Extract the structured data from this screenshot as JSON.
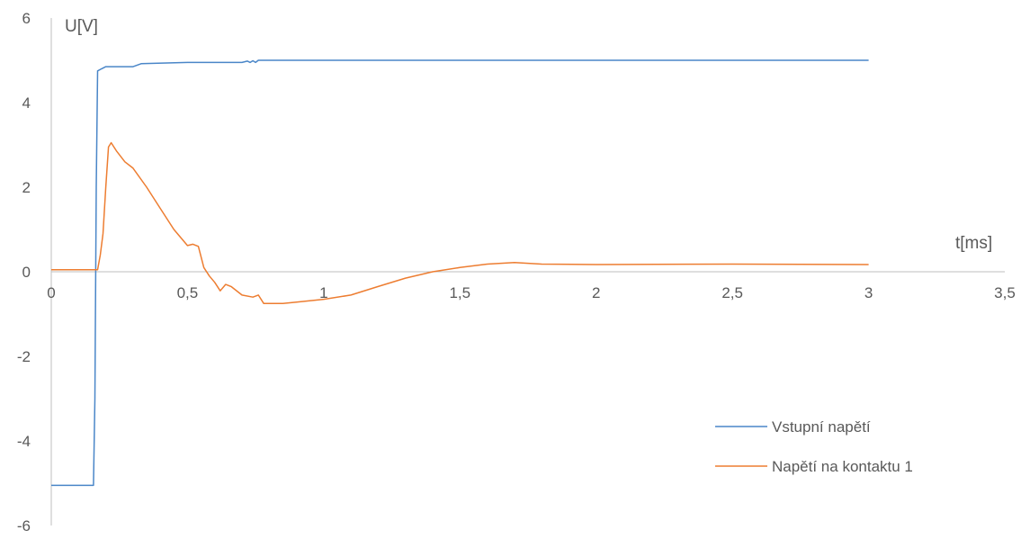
{
  "chart_data": {
    "type": "line",
    "title": "",
    "xlabel": "t[ms]",
    "ylabel": "U[V]",
    "xlim": [
      0,
      3.5
    ],
    "ylim": [
      -6,
      6
    ],
    "x_ticks": [
      {
        "value": 0,
        "label": "0"
      },
      {
        "value": 0.5,
        "label": "0,5"
      },
      {
        "value": 1,
        "label": "1"
      },
      {
        "value": 1.5,
        "label": "1,5"
      },
      {
        "value": 2,
        "label": "2"
      },
      {
        "value": 2.5,
        "label": "2,5"
      },
      {
        "value": 3,
        "label": "3"
      },
      {
        "value": 3.5,
        "label": "3,5"
      }
    ],
    "y_ticks": [
      {
        "value": 6,
        "label": "6"
      },
      {
        "value": 4,
        "label": "4"
      },
      {
        "value": 2,
        "label": "2"
      },
      {
        "value": 0,
        "label": "0"
      },
      {
        "value": -2,
        "label": "-2"
      },
      {
        "value": -4,
        "label": "-4"
      },
      {
        "value": -6,
        "label": "-6"
      }
    ],
    "grid": false,
    "legend_position": "bottom-right",
    "series": [
      {
        "name": "Vstupní napětí",
        "color": "#4a86c8",
        "points": [
          [
            0,
            -5.05
          ],
          [
            0.155,
            -5.05
          ],
          [
            0.16,
            -3.0
          ],
          [
            0.165,
            2.0
          ],
          [
            0.17,
            4.75
          ],
          [
            0.185,
            4.8
          ],
          [
            0.2,
            4.85
          ],
          [
            0.3,
            4.85
          ],
          [
            0.33,
            4.92
          ],
          [
            0.5,
            4.95
          ],
          [
            0.7,
            4.95
          ],
          [
            0.72,
            4.98
          ],
          [
            0.73,
            4.95
          ],
          [
            0.74,
            4.99
          ],
          [
            0.75,
            4.95
          ],
          [
            0.76,
            5.0
          ],
          [
            1.0,
            5.0
          ],
          [
            2.0,
            5.0
          ],
          [
            3.0,
            5.0
          ]
        ]
      },
      {
        "name": "Napětí na kontaktu 1",
        "color": "#ed7d31",
        "points": [
          [
            0,
            0.05
          ],
          [
            0.17,
            0.05
          ],
          [
            0.18,
            0.4
          ],
          [
            0.19,
            0.9
          ],
          [
            0.2,
            2.0
          ],
          [
            0.21,
            2.95
          ],
          [
            0.22,
            3.05
          ],
          [
            0.24,
            2.85
          ],
          [
            0.27,
            2.6
          ],
          [
            0.3,
            2.45
          ],
          [
            0.35,
            2.0
          ],
          [
            0.4,
            1.5
          ],
          [
            0.45,
            1.0
          ],
          [
            0.5,
            0.62
          ],
          [
            0.52,
            0.65
          ],
          [
            0.54,
            0.6
          ],
          [
            0.56,
            0.1
          ],
          [
            0.58,
            -0.1
          ],
          [
            0.6,
            -0.25
          ],
          [
            0.62,
            -0.45
          ],
          [
            0.64,
            -0.3
          ],
          [
            0.66,
            -0.35
          ],
          [
            0.7,
            -0.55
          ],
          [
            0.74,
            -0.6
          ],
          [
            0.76,
            -0.55
          ],
          [
            0.78,
            -0.75
          ],
          [
            0.85,
            -0.75
          ],
          [
            0.9,
            -0.72
          ],
          [
            1.0,
            -0.65
          ],
          [
            1.1,
            -0.55
          ],
          [
            1.2,
            -0.35
          ],
          [
            1.3,
            -0.15
          ],
          [
            1.4,
            0.0
          ],
          [
            1.5,
            0.1
          ],
          [
            1.6,
            0.18
          ],
          [
            1.7,
            0.22
          ],
          [
            1.8,
            0.18
          ],
          [
            2.0,
            0.17
          ],
          [
            2.5,
            0.18
          ],
          [
            3.0,
            0.17
          ]
        ]
      }
    ]
  }
}
